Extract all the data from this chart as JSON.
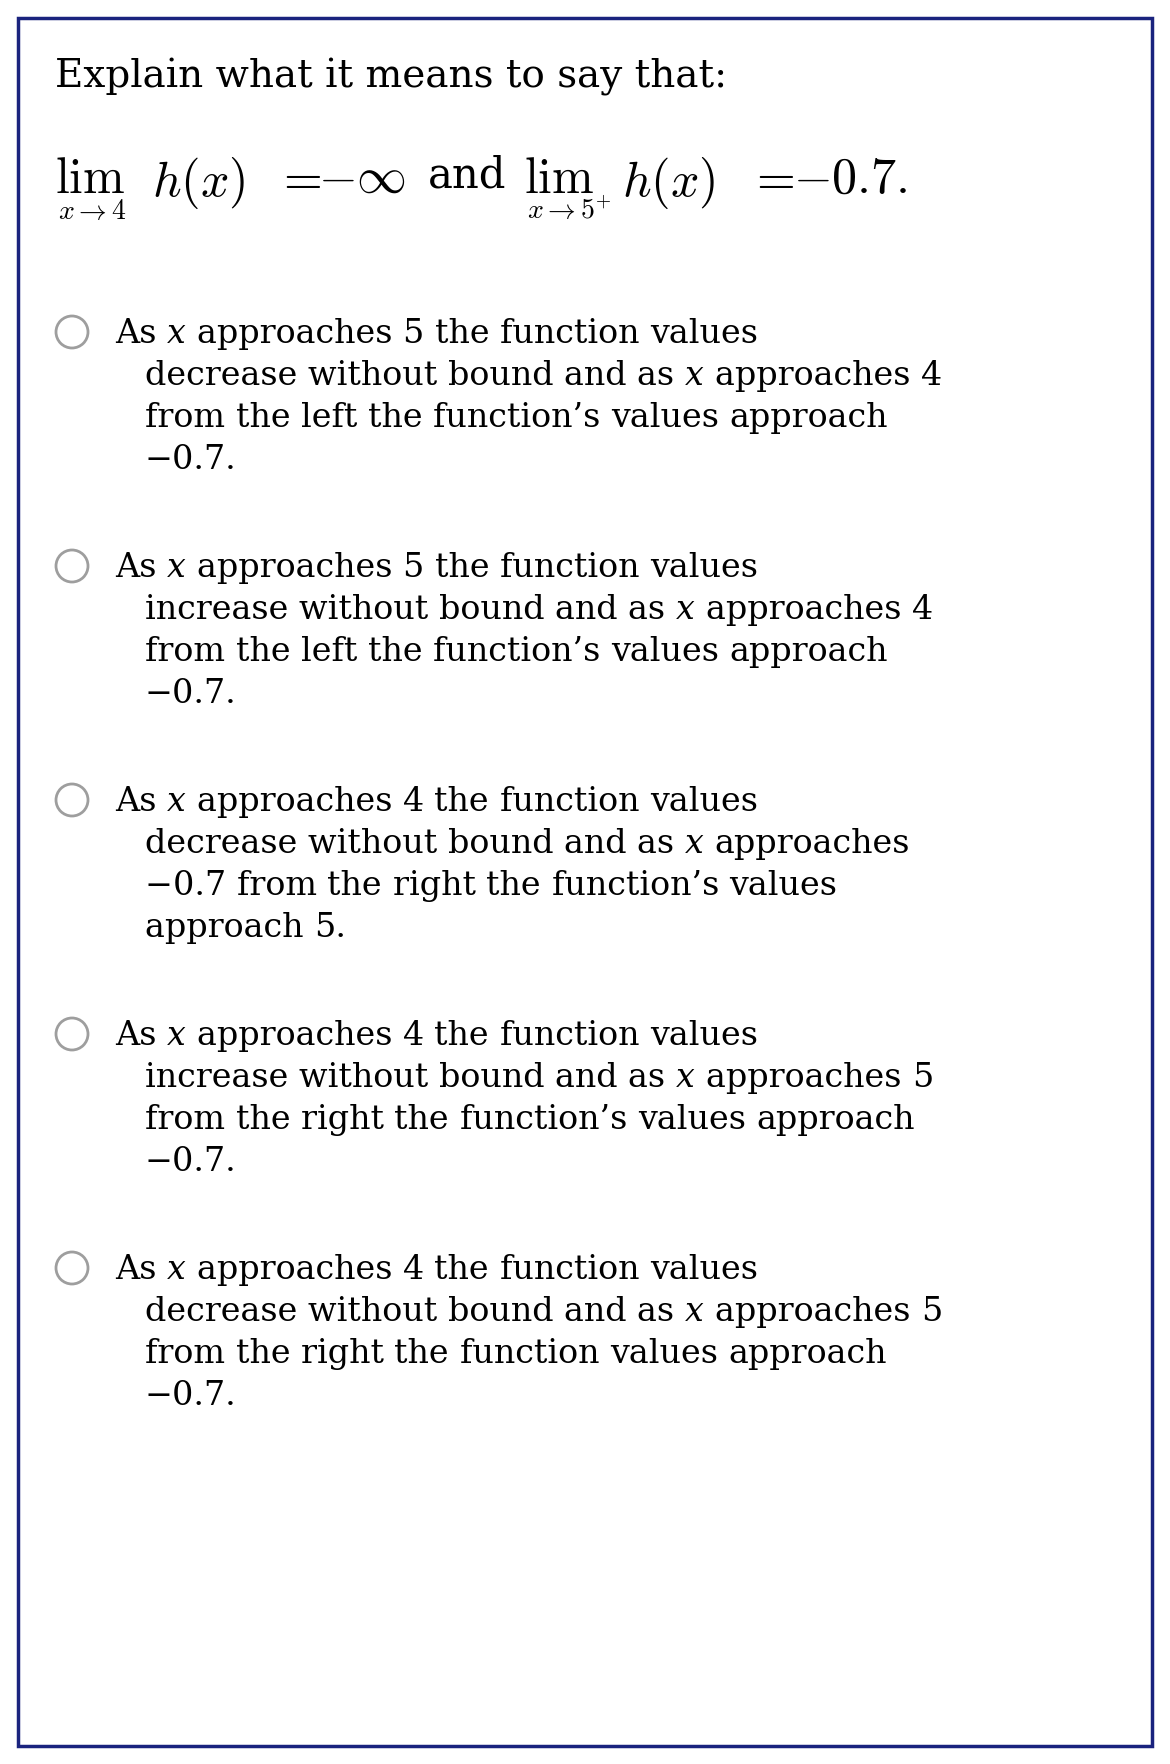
{
  "title_text": "Explain what it means to say that:",
  "background_color": "#ffffff",
  "border_color": "#1a237e",
  "text_color": "#000000",
  "radio_color": "#9e9e9e",
  "options": [
    {
      "lines": [
        "As x approaches 5 the function values",
        "decrease without bound and as x approaches 4",
        "from the left the function’s values approach",
        "−0.7."
      ]
    },
    {
      "lines": [
        "As x approaches 5 the function values",
        "increase without bound and as x approaches 4",
        "from the left the function’s values approach",
        "−0.7."
      ]
    },
    {
      "lines": [
        "As x approaches 4 the function values",
        "decrease without bound and as x approaches",
        "−0.7 from the right the function’s values",
        "approach 5."
      ]
    },
    {
      "lines": [
        "As x approaches 4 the function values",
        "increase without bound and as x approaches 5",
        "from the right the function’s values approach",
        "−0.7."
      ]
    },
    {
      "lines": [
        "As x approaches 4 the function values",
        "decrease without bound and as x approaches 5",
        "from the right the function values approach",
        "−0.7."
      ]
    }
  ],
  "fig_width": 11.7,
  "fig_height": 17.64,
  "dpi": 100
}
